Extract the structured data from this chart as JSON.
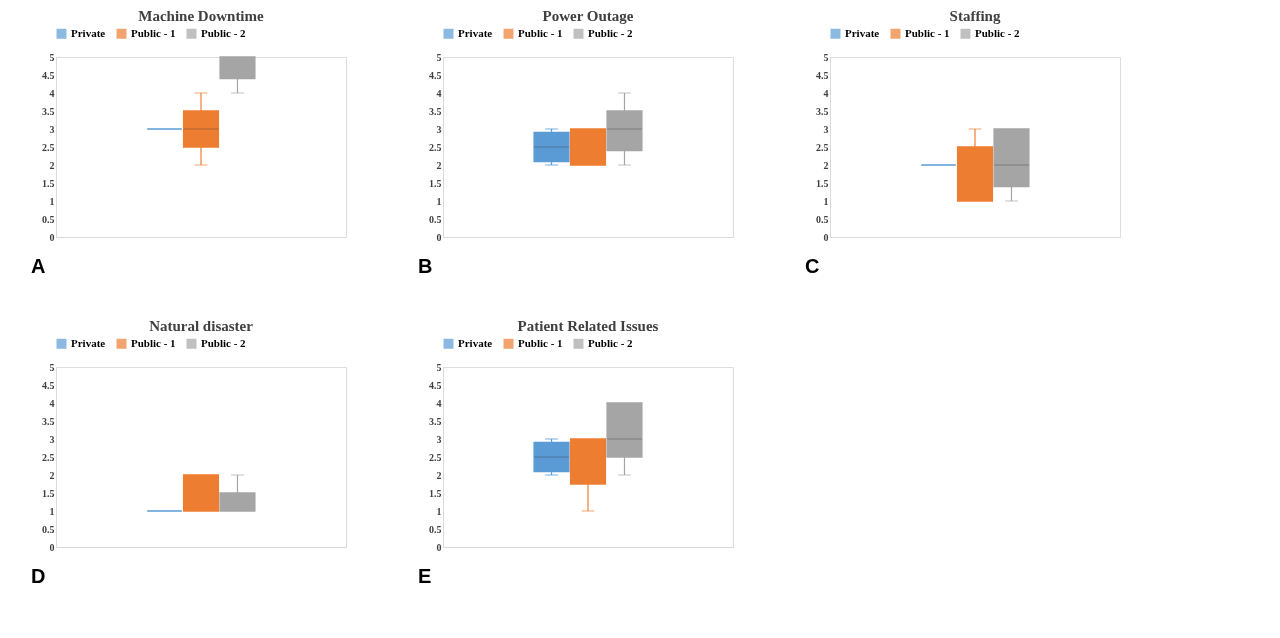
{
  "chart_data": [
    {
      "type": "box",
      "title": "Machine Downtime",
      "categories": [
        null
      ],
      "ylim": [
        0,
        5
      ],
      "yticks": [
        0,
        0.5,
        1,
        1.5,
        2,
        2.5,
        3,
        3.5,
        4,
        4.5,
        5
      ],
      "grid": false,
      "legend": "top",
      "tick_labels": "y",
      "annotations": [
        "A"
      ],
      "series": [
        {
          "name": "Private",
          "color": "#5b9bd5",
          "boxes": [
            {
              "low": 3,
              "q1": 3,
              "median": 3,
              "q3": 3,
              "high": 3
            }
          ]
        },
        {
          "name": "Public - 1",
          "color": "#ed7d31",
          "boxes": [
            {
              "low": 2,
              "q1": 2.5,
              "median": 3,
              "q3": 3.5,
              "high": 4
            }
          ]
        },
        {
          "name": "Public - 2",
          "color": "#a5a5a5",
          "boxes": [
            {
              "low": 4,
              "q1": 4.4,
              "median": 5,
              "q3": 5,
              "high": 5
            }
          ]
        }
      ]
    },
    {
      "type": "box",
      "title": "Power Outage",
      "categories": [
        null
      ],
      "ylim": [
        0,
        5
      ],
      "yticks": [
        0,
        0.5,
        1,
        1.5,
        2,
        2.5,
        3,
        3.5,
        4,
        4.5,
        5
      ],
      "grid": false,
      "legend": "top",
      "tick_labels": "y",
      "annotations": [
        "B"
      ],
      "series": [
        {
          "name": "Private",
          "color": "#5b9bd5",
          "boxes": [
            {
              "low": 2,
              "q1": 2.1,
              "median": 2.5,
              "q3": 2.9,
              "high": 3
            }
          ]
        },
        {
          "name": "Public - 1",
          "color": "#ed7d31",
          "boxes": [
            {
              "low": 2,
              "q1": 2,
              "median": 2,
              "q3": 3,
              "high": 3
            }
          ]
        },
        {
          "name": "Public - 2",
          "color": "#a5a5a5",
          "boxes": [
            {
              "low": 2,
              "q1": 2.4,
              "median": 3,
              "q3": 3.5,
              "high": 4
            }
          ]
        }
      ]
    },
    {
      "type": "box",
      "title": "Staffing",
      "categories": [
        null
      ],
      "ylim": [
        0,
        5
      ],
      "yticks": [
        0,
        0.5,
        1,
        1.5,
        2,
        2.5,
        3,
        3.5,
        4,
        4.5,
        5
      ],
      "grid": false,
      "legend": "top",
      "tick_labels": "y",
      "annotations": [
        "C"
      ],
      "series": [
        {
          "name": "Private",
          "color": "#5b9bd5",
          "boxes": [
            {
              "low": 2,
              "q1": 2,
              "median": 2,
              "q3": 2,
              "high": 2
            }
          ]
        },
        {
          "name": "Public - 1",
          "color": "#ed7d31",
          "boxes": [
            {
              "low": 1,
              "q1": 1,
              "median": 1,
              "q3": 2.5,
              "high": 3
            }
          ]
        },
        {
          "name": "Public - 2",
          "color": "#a5a5a5",
          "boxes": [
            {
              "low": 1,
              "q1": 1.4,
              "median": 2,
              "q3": 3,
              "high": 3
            }
          ]
        }
      ]
    },
    {
      "type": "box",
      "title": "Natural disaster",
      "categories": [
        null
      ],
      "ylim": [
        0,
        5
      ],
      "yticks": [
        0,
        0.5,
        1,
        1.5,
        2,
        2.5,
        3,
        3.5,
        4,
        4.5,
        5
      ],
      "grid": false,
      "legend": "top",
      "tick_labels": "y",
      "annotations": [
        "D"
      ],
      "series": [
        {
          "name": "Private",
          "color": "#5b9bd5",
          "boxes": [
            {
              "low": 1,
              "q1": 1,
              "median": 1,
              "q3": 1,
              "high": 1
            }
          ]
        },
        {
          "name": "Public - 1",
          "color": "#ed7d31",
          "boxes": [
            {
              "low": 1,
              "q1": 1,
              "median": 1,
              "q3": 2,
              "high": 2
            }
          ]
        },
        {
          "name": "Public - 2",
          "color": "#a5a5a5",
          "boxes": [
            {
              "low": 1,
              "q1": 1,
              "median": 1,
              "q3": 1.5,
              "high": 2
            }
          ]
        }
      ]
    },
    {
      "type": "box",
      "title": "Patient Related Issues",
      "categories": [
        null
      ],
      "ylim": [
        0,
        5
      ],
      "yticks": [
        0,
        0.5,
        1,
        1.5,
        2,
        2.5,
        3,
        3.5,
        4,
        4.5,
        5
      ],
      "grid": false,
      "legend": "top",
      "tick_labels": "y",
      "annotations": [
        "E"
      ],
      "series": [
        {
          "name": "Private",
          "color": "#5b9bd5",
          "boxes": [
            {
              "low": 2,
              "q1": 2.1,
              "median": 2.5,
              "q3": 2.9,
              "high": 3
            }
          ]
        },
        {
          "name": "Public - 1",
          "color": "#ed7d31",
          "boxes": [
            {
              "low": 1,
              "q1": 1.75,
              "median": 3,
              "q3": 3,
              "high": 3
            }
          ]
        },
        {
          "name": "Public - 2",
          "color": "#a5a5a5",
          "boxes": [
            {
              "low": 2,
              "q1": 2.5,
              "median": 3,
              "q3": 4,
              "high": 4
            }
          ]
        }
      ]
    }
  ]
}
